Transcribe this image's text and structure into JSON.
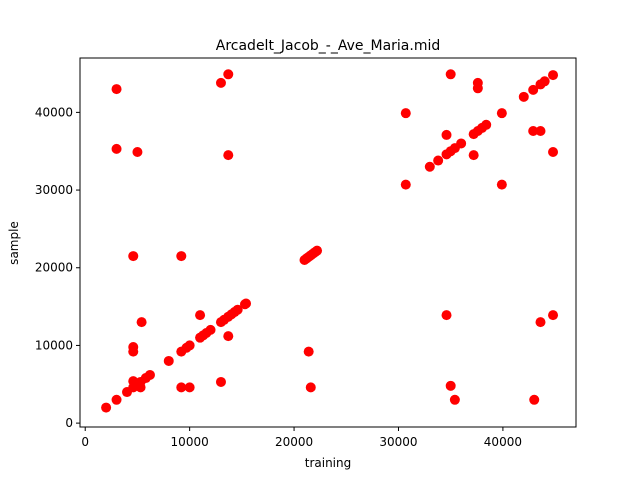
{
  "chart_data": {
    "type": "scatter",
    "title": "Arcadelt_Jacob_-_Ave_Maria.mid",
    "xlabel": "training",
    "ylabel": "sample",
    "xlim": [
      -500,
      47000
    ],
    "ylim": [
      -500,
      47000
    ],
    "xticks": [
      0,
      10000,
      20000,
      30000,
      40000
    ],
    "yticks": [
      0,
      10000,
      20000,
      30000,
      40000
    ],
    "grid": false,
    "legend": "none",
    "marker_color": "#ff0000",
    "points": [
      [
        2000,
        2000
      ],
      [
        3000,
        3000
      ],
      [
        4000,
        4000
      ],
      [
        4600,
        4600
      ],
      [
        4600,
        5400
      ],
      [
        5000,
        5000
      ],
      [
        5300,
        5300
      ],
      [
        5300,
        4600
      ],
      [
        5800,
        5800
      ],
      [
        6200,
        6200
      ],
      [
        8000,
        8000
      ],
      [
        9200,
        9200
      ],
      [
        9700,
        9700
      ],
      [
        10000,
        10000
      ],
      [
        11000,
        11000
      ],
      [
        11300,
        11300
      ],
      [
        11600,
        11600
      ],
      [
        12000,
        12000
      ],
      [
        13000,
        13000
      ],
      [
        13300,
        13300
      ],
      [
        13700,
        13700
      ],
      [
        14000,
        14000
      ],
      [
        14300,
        14300
      ],
      [
        14600,
        14600
      ],
      [
        15300,
        15300
      ],
      [
        15400,
        15400
      ],
      [
        21000,
        21000
      ],
      [
        21200,
        21200
      ],
      [
        21400,
        21400
      ],
      [
        21600,
        21600
      ],
      [
        21800,
        21800
      ],
      [
        22000,
        22000
      ],
      [
        22200,
        22200
      ],
      [
        30700,
        30700
      ],
      [
        33000,
        33000
      ],
      [
        33800,
        33800
      ],
      [
        34600,
        34600
      ],
      [
        35000,
        35000
      ],
      [
        35400,
        35400
      ],
      [
        36000,
        36000
      ],
      [
        37200,
        37200
      ],
      [
        37600,
        37600
      ],
      [
        38000,
        38000
      ],
      [
        38400,
        38400
      ],
      [
        39900,
        39900
      ],
      [
        42000,
        42000
      ],
      [
        42900,
        42900
      ],
      [
        43600,
        43600
      ],
      [
        44000,
        44000
      ],
      [
        44800,
        44800
      ],
      [
        3000,
        43000
      ],
      [
        3000,
        35300
      ],
      [
        5000,
        34900
      ],
      [
        4600,
        21500
      ],
      [
        9200,
        21500
      ],
      [
        13000,
        43800
      ],
      [
        13700,
        44900
      ],
      [
        13700,
        34500
      ],
      [
        5400,
        13000
      ],
      [
        4600,
        9200
      ],
      [
        4600,
        9800
      ],
      [
        9200,
        4600
      ],
      [
        10000,
        4600
      ],
      [
        11000,
        13900
      ],
      [
        13700,
        11200
      ],
      [
        13000,
        5300
      ],
      [
        21600,
        4600
      ],
      [
        21400,
        9200
      ],
      [
        30700,
        39900
      ],
      [
        34600,
        37100
      ],
      [
        34600,
        13900
      ],
      [
        35000,
        4800
      ],
      [
        35000,
        44900
      ],
      [
        35400,
        3000
      ],
      [
        37200,
        34500
      ],
      [
        37600,
        43800
      ],
      [
        37600,
        43100
      ],
      [
        39900,
        30700
      ],
      [
        42900,
        37600
      ],
      [
        43600,
        37600
      ],
      [
        43000,
        3000
      ],
      [
        43600,
        13000
      ],
      [
        44800,
        13900
      ],
      [
        44800,
        34900
      ]
    ]
  }
}
